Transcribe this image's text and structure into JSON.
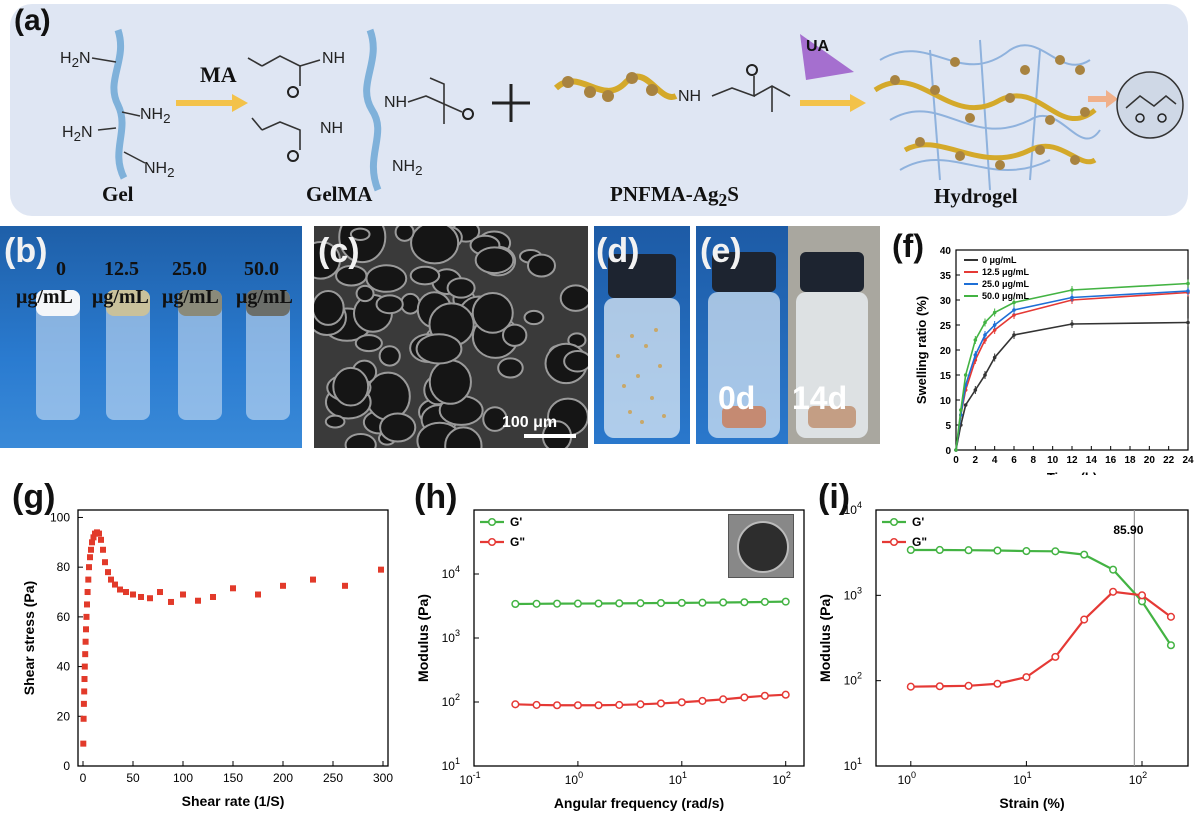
{
  "panel_labels": {
    "a": "(a)",
    "b": "(b)",
    "c": "(c)",
    "d": "(d)",
    "e": "(e)",
    "f": "(f)",
    "g": "(g)",
    "h": "(h)",
    "i": "(i)"
  },
  "scheme": {
    "gel": "Gel",
    "gelma": "GelMA",
    "pnfma": "PNFMA-Ag",
    "pnfma_sub": "2",
    "pnfma_tail": "S",
    "hydrogel": "Hydrogel",
    "ma": "MA",
    "ua": "UA",
    "h2n": "H",
    "nh2": "NH",
    "nh": "NH",
    "two": "2"
  },
  "photo_b": {
    "labels": [
      {
        "value": "0",
        "unit": "μg/mL"
      },
      {
        "value": "12.5",
        "unit": "μg/mL"
      },
      {
        "value": "25.0",
        "unit": "μg/mL"
      },
      {
        "value": "50.0",
        "unit": "μg/mL"
      }
    ]
  },
  "photo_c": {
    "scale_bar": "100 μm"
  },
  "photo_e": {
    "day0": "0d",
    "day14": "14d"
  },
  "colors": {
    "black": "#333333",
    "red": "#e53935",
    "blue": "#1e6fd6",
    "green": "#43b343",
    "scatter": "#e23a2a"
  },
  "chart_data": [
    {
      "id": "f",
      "type": "line",
      "xlabel": "Time (h)",
      "ylabel": "Swelling ratio (%)",
      "xlim": [
        0,
        24
      ],
      "ylim": [
        0,
        40
      ],
      "xticks": [
        0,
        2,
        4,
        6,
        8,
        10,
        12,
        14,
        16,
        18,
        20,
        22,
        24
      ],
      "yticks": [
        0,
        5,
        10,
        15,
        20,
        25,
        30,
        35,
        40
      ],
      "legend": "top-left",
      "x": [
        0,
        0.5,
        1,
        2,
        3,
        4,
        6,
        12,
        24
      ],
      "series": [
        {
          "name": "0 μg/mL",
          "color": "#333333",
          "values": [
            0,
            5,
            9,
            12,
            15,
            18.5,
            23,
            25.2,
            25.5
          ]
        },
        {
          "name": "12.5 μg/mL",
          "color": "#e53935",
          "values": [
            0,
            7,
            12,
            18,
            22,
            24,
            27,
            30,
            31.5
          ]
        },
        {
          "name": "25.0 μg/mL",
          "color": "#1e6fd6",
          "values": [
            0,
            7,
            13,
            19,
            23,
            25,
            28,
            30.5,
            31.8
          ]
        },
        {
          "name": "50.0 μg/mL",
          "color": "#43b343",
          "values": [
            0,
            8,
            15,
            22,
            25.5,
            27.5,
            29.5,
            32,
            33.3
          ]
        }
      ]
    },
    {
      "id": "g",
      "type": "scatter",
      "xlabel": "Shear rate (1/S)",
      "ylabel": "Shear stress (Pa)",
      "xlim": [
        -5,
        305
      ],
      "ylim": [
        0,
        103
      ],
      "xticks": [
        0,
        50,
        100,
        150,
        200,
        250,
        300
      ],
      "yticks": [
        0,
        20,
        40,
        60,
        80,
        100
      ],
      "series": [
        {
          "name": "",
          "color": "#e23a2a",
          "points": [
            [
              0.3,
              9
            ],
            [
              0.6,
              19
            ],
            [
              0.9,
              25
            ],
            [
              1.2,
              30
            ],
            [
              1.5,
              35
            ],
            [
              1.8,
              40
            ],
            [
              2.2,
              45
            ],
            [
              2.6,
              50
            ],
            [
              3,
              55
            ],
            [
              3.5,
              60
            ],
            [
              4,
              65
            ],
            [
              4.6,
              70
            ],
            [
              5.3,
              75
            ],
            [
              6,
              80
            ],
            [
              7,
              84
            ],
            [
              8,
              87
            ],
            [
              9,
              90
            ],
            [
              10.5,
              92
            ],
            [
              12,
              93.5
            ],
            [
              14,
              94
            ],
            [
              16,
              93.5
            ],
            [
              18,
              91
            ],
            [
              20,
              87
            ],
            [
              22,
              82
            ],
            [
              25,
              78
            ],
            [
              28,
              75
            ],
            [
              32,
              73
            ],
            [
              37,
              71
            ],
            [
              43,
              70
            ],
            [
              50,
              69
            ],
            [
              58,
              68
            ],
            [
              67,
              67.5
            ],
            [
              77,
              70
            ],
            [
              88,
              66
            ],
            [
              100,
              69
            ],
            [
              115,
              66.5
            ],
            [
              130,
              68
            ],
            [
              150,
              71.5
            ],
            [
              175,
              69
            ],
            [
              200,
              72.5
            ],
            [
              230,
              75
            ],
            [
              262,
              72.5
            ],
            [
              298,
              79
            ]
          ]
        }
      ]
    },
    {
      "id": "h",
      "type": "line",
      "xlabel": "Angular frequency (rad/s)",
      "ylabel": "Modulus (Pa)",
      "xscale": "log",
      "yscale": "log",
      "xlim": [
        0.1,
        150
      ],
      "ylim": [
        10,
        100000
      ],
      "xtick_labels": [
        "10-1",
        "100",
        "101",
        "102"
      ],
      "ytick_labels": [
        "101",
        "102",
        "103",
        "104"
      ],
      "legend": "top-left",
      "x": [
        0.25,
        0.4,
        0.63,
        1,
        1.58,
        2.5,
        4,
        6.3,
        10,
        15.8,
        25,
        40,
        63,
        100
      ],
      "series": [
        {
          "name": "G'",
          "color": "#43b343",
          "values": [
            3400,
            3420,
            3440,
            3450,
            3460,
            3480,
            3500,
            3520,
            3540,
            3560,
            3590,
            3620,
            3660,
            3700
          ]
        },
        {
          "name": "G\"",
          "color": "#e53935",
          "values": [
            92,
            90,
            89,
            89,
            89,
            90,
            92,
            95,
            99,
            104,
            110,
            118,
            125,
            130
          ]
        }
      ]
    },
    {
      "id": "i",
      "type": "line",
      "xlabel": "Strain (%)",
      "ylabel": "Modulus (Pa)",
      "xscale": "log",
      "yscale": "log",
      "xlim": [
        0.5,
        250
      ],
      "ylim": [
        10,
        10000
      ],
      "xtick_labels": [
        "100",
        "101",
        "102"
      ],
      "ytick_labels": [
        "101",
        "102",
        "103",
        "104"
      ],
      "legend": "top-left",
      "annotation": "85.90",
      "annotation_x": 85.9,
      "x": [
        1,
        1.78,
        3.16,
        5.62,
        10,
        17.8,
        31.6,
        56.2,
        100,
        178
      ],
      "series": [
        {
          "name": "G'",
          "color": "#43b343",
          "values": [
            3400,
            3400,
            3380,
            3350,
            3300,
            3280,
            3000,
            2000,
            850,
            260
          ]
        },
        {
          "name": "G\"",
          "color": "#e53935",
          "values": [
            85,
            86,
            87,
            92,
            110,
            190,
            520,
            1100,
            1000,
            560
          ]
        }
      ]
    }
  ]
}
